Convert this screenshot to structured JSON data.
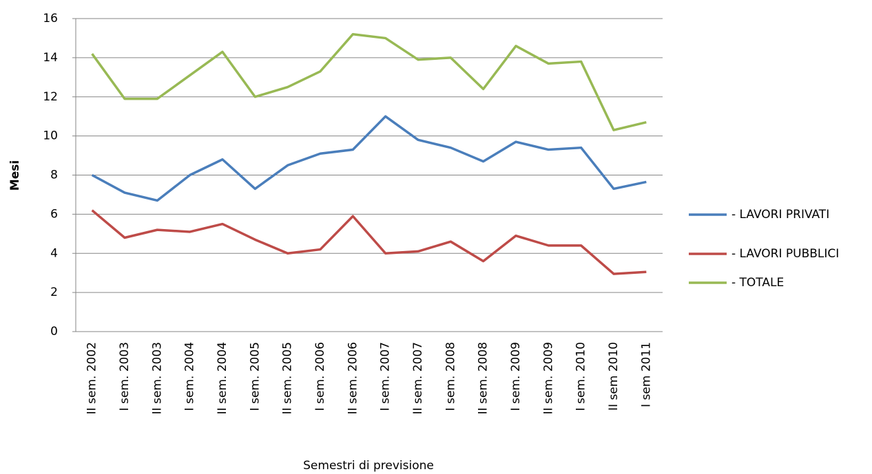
{
  "chart_data": {
    "type": "line",
    "x_label": "Semestri di previsione",
    "y_label": "Mesi",
    "categories": [
      "II sem. 2002",
      "I sem. 2003",
      "II sem. 2003",
      "I sem. 2004",
      "II sem. 2004",
      "I sem. 2005",
      "II sem. 2005",
      "I sem. 2006",
      "II sem. 2006",
      "I sem. 2007",
      "II sem. 2007",
      "I sem. 2008",
      "II sem. 2008",
      "I sem. 2009",
      "II sem. 2009",
      "I sem. 2010",
      "II sem 2010",
      "I sem 2011"
    ],
    "series": [
      {
        "name": "- LAVORI PRIVATI",
        "color": "#4a7ebb",
        "values": [
          8.0,
          7.1,
          6.7,
          8.0,
          8.8,
          7.3,
          8.5,
          9.1,
          9.3,
          11.0,
          9.8,
          9.4,
          8.7,
          9.7,
          9.3,
          9.4,
          7.3,
          7.65
        ]
      },
      {
        "name": "- LAVORI PUBBLICI",
        "color": "#be4b48",
        "values": [
          6.2,
          4.8,
          5.2,
          5.1,
          5.5,
          4.7,
          4.0,
          4.2,
          5.9,
          4.0,
          4.1,
          4.6,
          3.6,
          4.9,
          4.4,
          4.4,
          2.95,
          3.05
        ]
      },
      {
        "name": "- TOTALE",
        "color": "#98b954",
        "values": [
          14.2,
          11.9,
          11.9,
          13.1,
          14.3,
          12.0,
          12.5,
          13.3,
          15.2,
          15.0,
          13.9,
          14.0,
          12.4,
          14.6,
          13.7,
          13.8,
          10.3,
          10.7
        ]
      }
    ],
    "ylim": [
      0,
      16
    ],
    "yticks": [
      0,
      2,
      4,
      6,
      8,
      10,
      12,
      14,
      16
    ],
    "grid": true,
    "legend": "right"
  }
}
